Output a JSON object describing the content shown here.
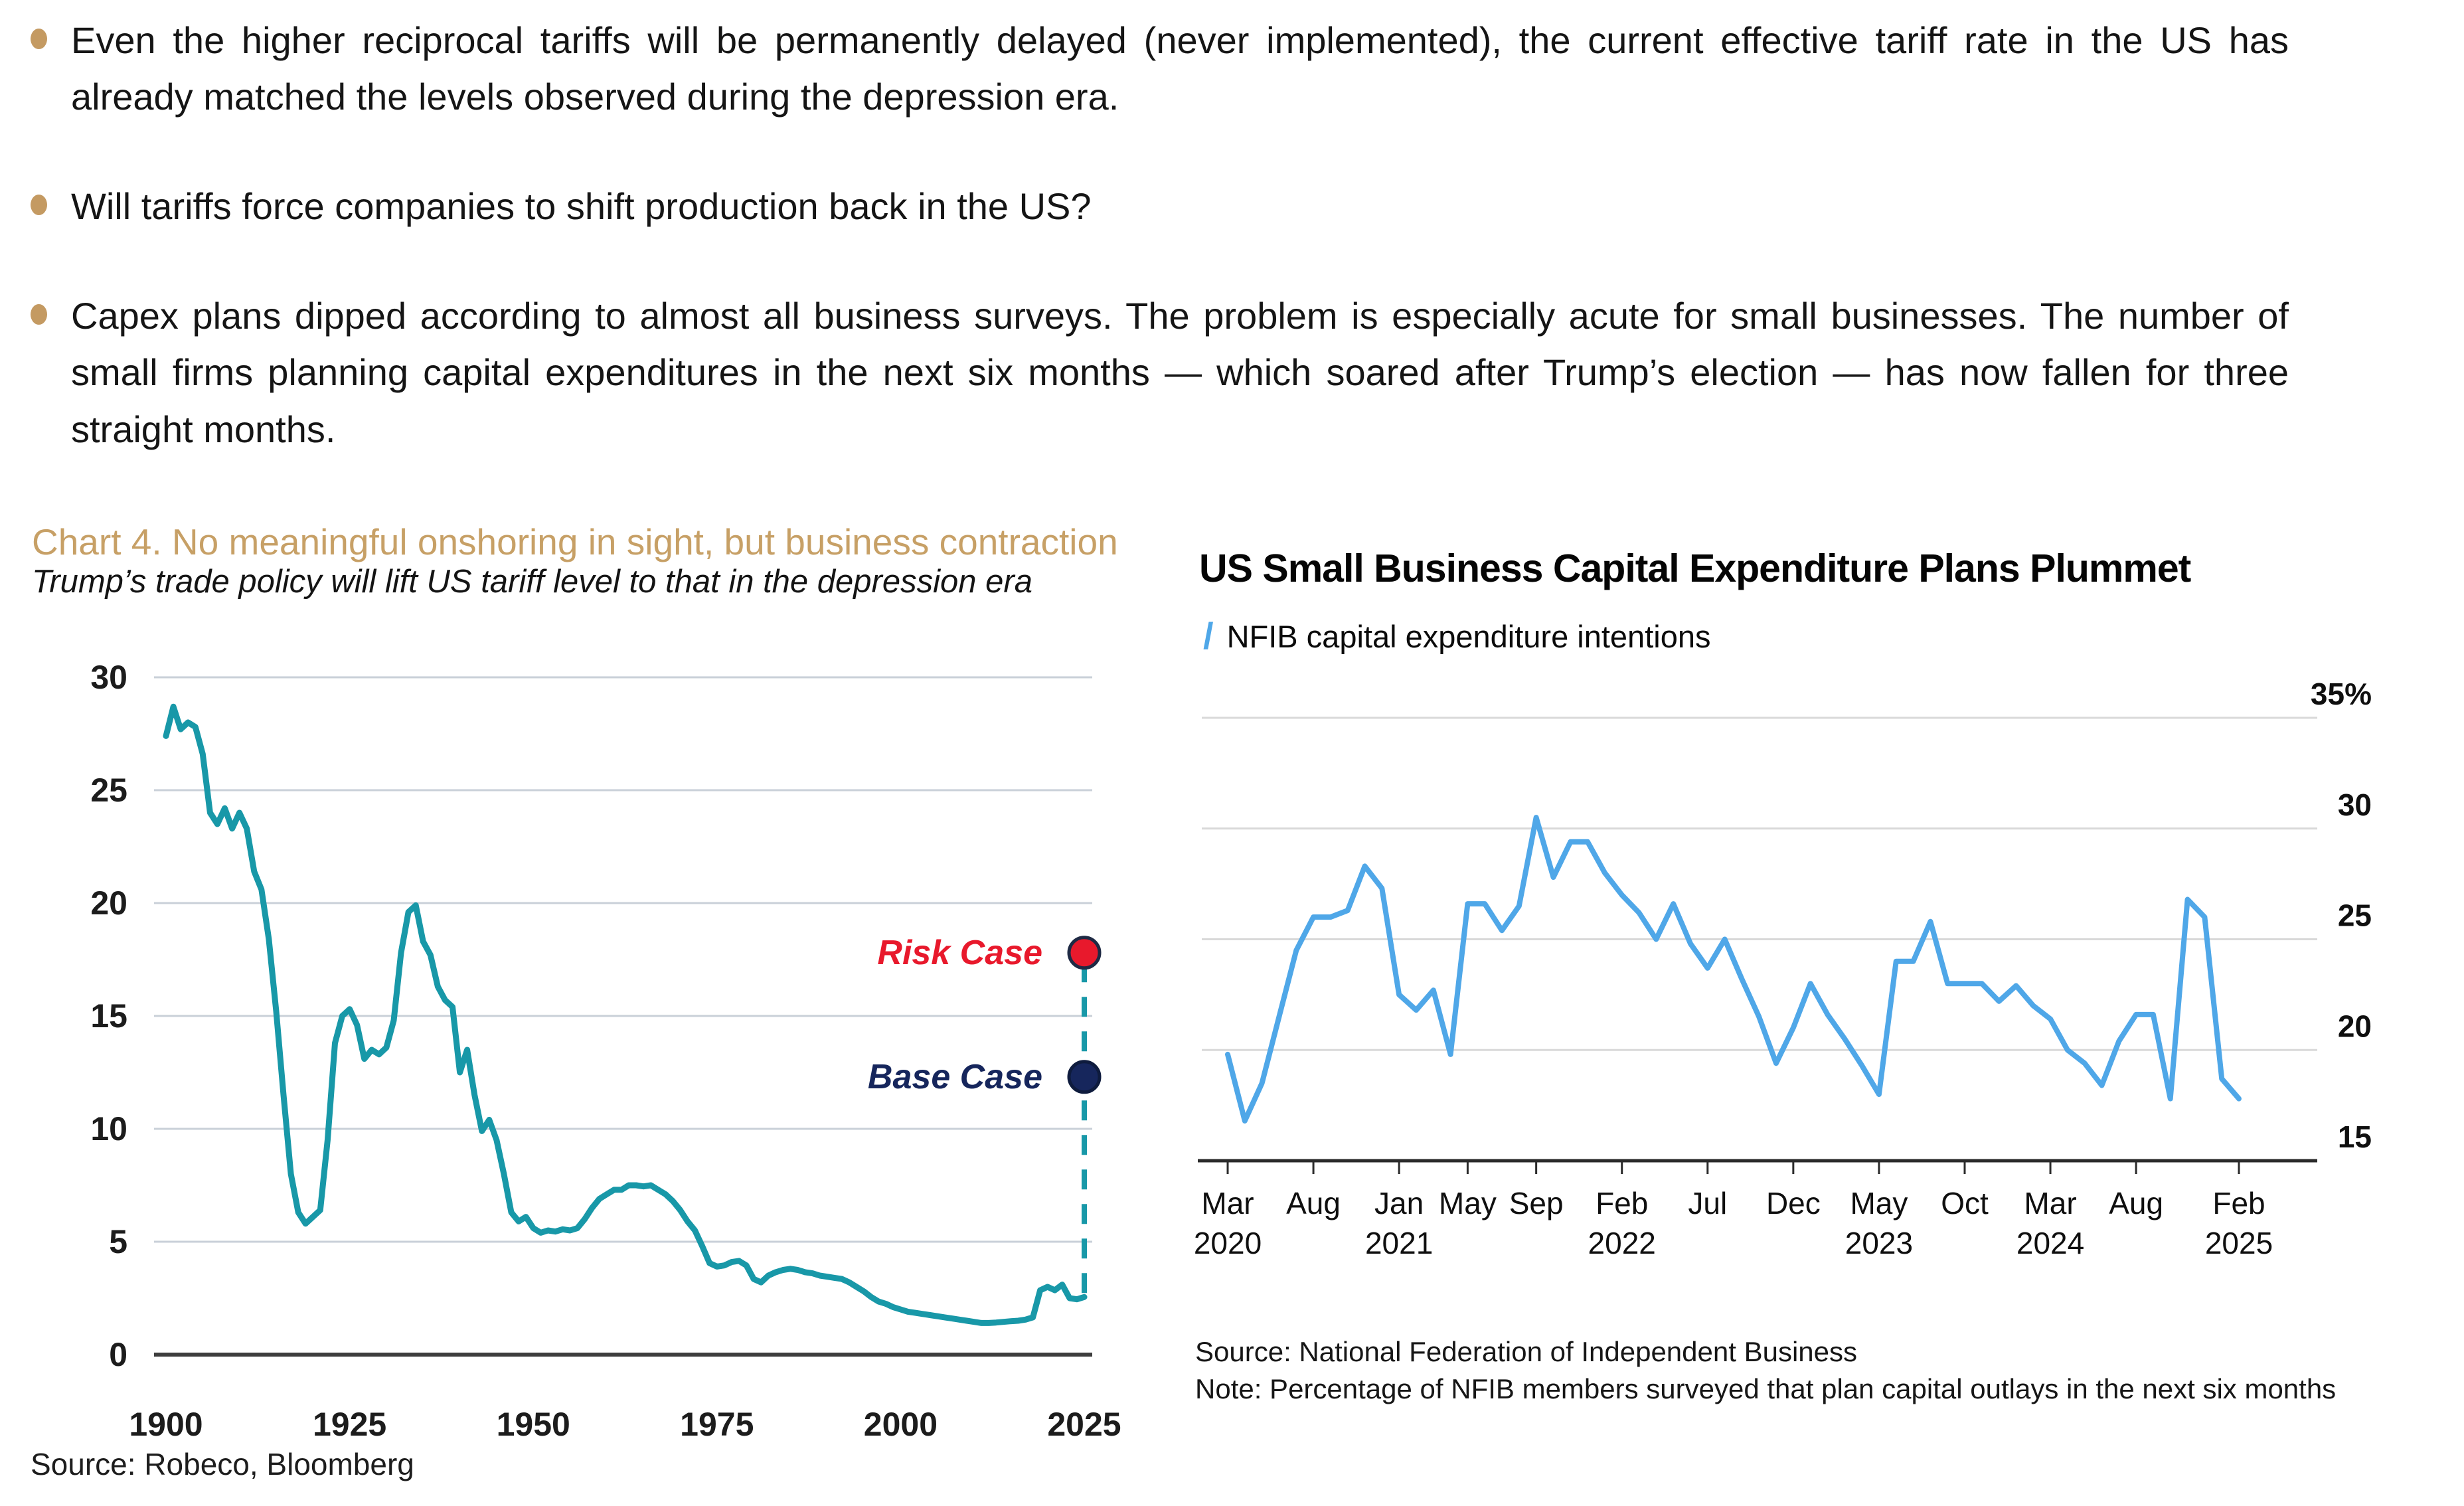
{
  "colors": {
    "accent_gold": "#C7A066",
    "teal": "#1898A8",
    "light_blue": "#4FA7E8",
    "risk_red": "#E8192C",
    "base_navy": "#16265C"
  },
  "bullets": {
    "items": [
      {
        "text": "Even the higher reciprocal tariffs will be permanently delayed (never implemented), the current effective tariff rate in the US has already matched the levels observed during the depression era."
      },
      {
        "text": "Will tariffs force companies to shift production back in the US?"
      },
      {
        "text": "Capex plans dipped according to almost all business surveys. The problem is especially acute for small businesses. The number of small firms planning capital expenditures in the next six months — which soared after Trump’s election — has now fallen for three straight months."
      }
    ]
  },
  "section_title": "Chart 4. No meaningful onshoring in sight, but business contraction",
  "footer_source": "Source: Robeco, Bloomberg",
  "chart_data": [
    {
      "type": "line",
      "title": "Trump’s trade policy will lift US tariff level to that in the depression era",
      "line_color": "#1898A8",
      "x_axis": {
        "start_year": 1900,
        "end_year": 2025,
        "ticks": [
          1900,
          1925,
          1950,
          1975,
          2000,
          2025
        ]
      },
      "y_axis": {
        "min": 0,
        "max": 30,
        "ticks": [
          0,
          5,
          10,
          15,
          20,
          25,
          30
        ]
      },
      "values": [
        27.4,
        28.7,
        27.7,
        28.0,
        27.8,
        26.6,
        24.0,
        23.5,
        24.2,
        23.3,
        24.0,
        23.3,
        21.4,
        20.6,
        18.4,
        15.2,
        11.5,
        8.0,
        6.3,
        5.8,
        6.1,
        6.4,
        9.5,
        13.8,
        15.0,
        15.3,
        14.6,
        13.1,
        13.5,
        13.3,
        13.6,
        14.8,
        17.8,
        19.6,
        19.9,
        18.3,
        17.7,
        16.3,
        15.7,
        15.4,
        12.5,
        13.5,
        11.5,
        9.9,
        10.4,
        9.5,
        8.0,
        6.3,
        5.9,
        6.1,
        5.6,
        5.4,
        5.5,
        5.45,
        5.55,
        5.5,
        5.6,
        6.0,
        6.5,
        6.9,
        7.1,
        7.3,
        7.3,
        7.5,
        7.5,
        7.45,
        7.5,
        7.3,
        7.1,
        6.8,
        6.4,
        5.9,
        5.5,
        4.8,
        4.05,
        3.9,
        3.95,
        4.1,
        4.15,
        3.95,
        3.35,
        3.2,
        3.5,
        3.65,
        3.75,
        3.8,
        3.75,
        3.65,
        3.6,
        3.5,
        3.45,
        3.4,
        3.35,
        3.2,
        3.0,
        2.8,
        2.55,
        2.35,
        2.25,
        2.1,
        2.0,
        1.9,
        1.85,
        1.8,
        1.75,
        1.7,
        1.65,
        1.6,
        1.55,
        1.5,
        1.45,
        1.4,
        1.4,
        1.42,
        1.45,
        1.48,
        1.5,
        1.55,
        1.65,
        2.85,
        3.0,
        2.85,
        3.1,
        2.5,
        2.45,
        2.55
      ],
      "projection": {
        "year": 2025,
        "risk_case": {
          "label": "Risk Case",
          "value": 17.8,
          "color": "#E8192C"
        },
        "base_case": {
          "label": "Base Case",
          "value": 12.3,
          "color": "#16265C"
        }
      }
    },
    {
      "type": "line",
      "title": "US Small Business Capital Expenditure Plans Plummet",
      "legend": "NFIB capital expenditure intentions",
      "line_color": "#4FA7E8",
      "x_axis": {
        "months_total": 60,
        "first_month": "Mar 2020",
        "last_month": "Feb 2025",
        "tick_month_index": [
          0,
          5,
          10,
          14,
          18,
          23,
          28,
          33,
          38,
          43,
          48,
          53,
          59
        ],
        "tick_labels": [
          [
            "Mar",
            "2020"
          ],
          [
            "Aug",
            ""
          ],
          [
            "Jan",
            "2021"
          ],
          [
            "May",
            ""
          ],
          [
            "Sep",
            ""
          ],
          [
            "Feb",
            "2022"
          ],
          [
            "Jul",
            ""
          ],
          [
            "Dec",
            ""
          ],
          [
            "May",
            "2023"
          ],
          [
            "Oct",
            ""
          ],
          [
            "Mar",
            "2024"
          ],
          [
            "Aug",
            ""
          ],
          [
            "Feb",
            "2025"
          ]
        ]
      },
      "y_axis": {
        "min": 15,
        "max": 36.5,
        "ticks": [
          15,
          20,
          25,
          30,
          35
        ],
        "tick_labels": [
          "15",
          "20",
          "25",
          "30",
          "35%"
        ]
      },
      "values": [
        19.8,
        16.8,
        18.5,
        21.5,
        24.5,
        26.0,
        26.0,
        26.3,
        28.3,
        27.3,
        22.5,
        21.8,
        22.7,
        19.8,
        26.6,
        26.6,
        25.4,
        26.5,
        30.5,
        27.8,
        29.4,
        29.4,
        28.0,
        27.0,
        26.2,
        25.0,
        26.6,
        24.8,
        23.7,
        25.0,
        23.2,
        21.5,
        19.4,
        21.0,
        23.0,
        21.6,
        20.5,
        19.3,
        18.0,
        24.0,
        24.0,
        25.8,
        23.0,
        23.0,
        23.0,
        22.2,
        22.9,
        22.0,
        21.4,
        20.0,
        19.4,
        18.4,
        20.4,
        21.6,
        21.6,
        17.8,
        26.8,
        26.0,
        18.7,
        17.8
      ],
      "source": "Source: National Federation of Independent Business",
      "note": "Note: Percentage of NFIB members surveyed that plan capital outlays in the next six months"
    }
  ]
}
